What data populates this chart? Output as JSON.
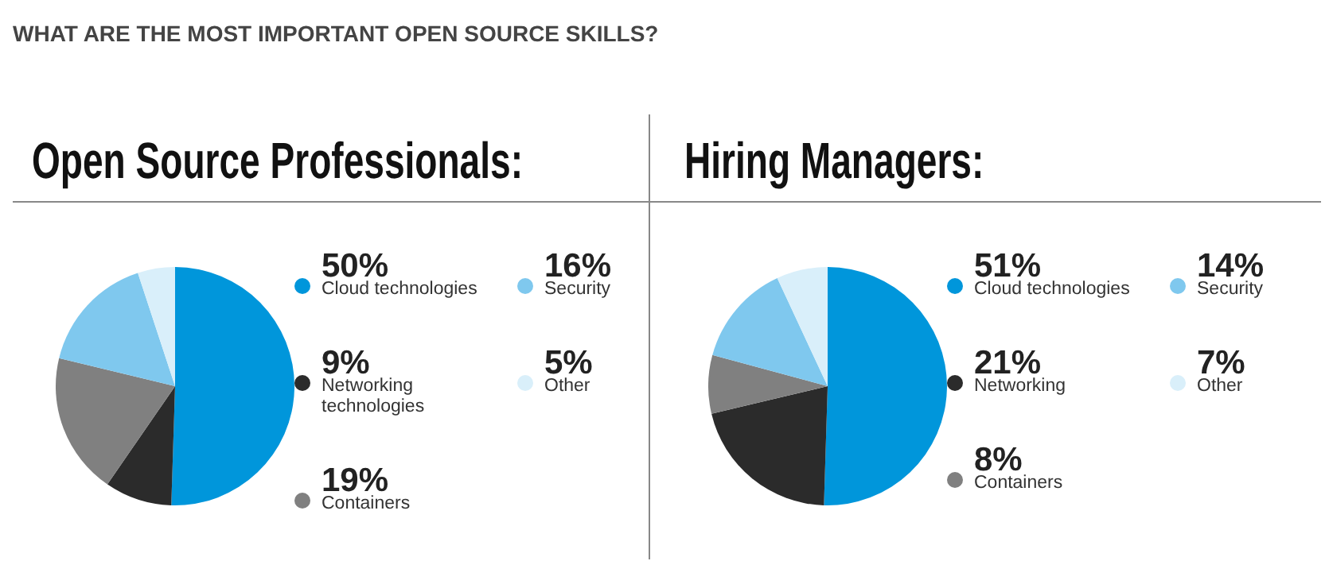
{
  "chart_data": [
    {
      "type": "pie",
      "title": "Open Source Professionals:",
      "annotations": [
        "WHAT ARE THE MOST IMPORTANT OPEN SOURCE SKILLS?"
      ],
      "categories": [
        "Cloud technologies",
        "Networking technologies",
        "Containers",
        "Security",
        "Other"
      ],
      "values": [
        50,
        9,
        19,
        16,
        5
      ],
      "value_labels": [
        "50%",
        "9%",
        "19%",
        "16%",
        "5%"
      ],
      "colors": [
        "#0096db",
        "#2b2b2b",
        "#808080",
        "#7fc8ee",
        "#d9effa"
      ],
      "legend": "right"
    },
    {
      "type": "pie",
      "title": "Hiring Managers:",
      "categories": [
        "Cloud technologies",
        "Networking",
        "Containers",
        "Security",
        "Other"
      ],
      "values": [
        51,
        21,
        8,
        14,
        7
      ],
      "value_labels": [
        "51%",
        "21%",
        "8%",
        "14%",
        "7%"
      ],
      "colors": [
        "#0096db",
        "#2b2b2b",
        "#808080",
        "#7fc8ee",
        "#d9effa"
      ],
      "legend": "right"
    }
  ]
}
